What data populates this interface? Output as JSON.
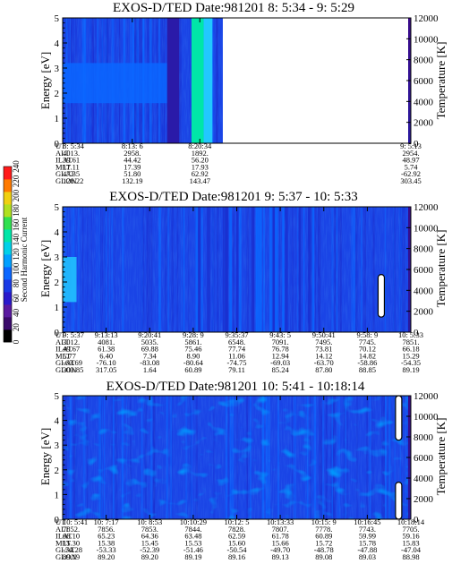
{
  "colors": {
    "background_field": "#1a44e6",
    "enhanced_field": "#0a66ff",
    "low_flux": "#1a2fd0",
    "dark_band": "#2a1aa8",
    "hot_band": "#00e6a8",
    "cyan": "#22c8ff",
    "temperature_bar_top": "#3a0a8a",
    "temperature_bar_bottom": "#2a1aa0"
  },
  "colorbar": {
    "label": "Second Harmonic Current",
    "ticks": [
      "0",
      "20",
      "40",
      "60",
      "80",
      "100",
      "120",
      "140",
      "160",
      "180",
      "200",
      "220",
      "240"
    ],
    "colors": [
      "#000000",
      "#3a0a6a",
      "#5a1aa0",
      "#2a1acc",
      "#1a3ae6",
      "#0a66ff",
      "#00a0ff",
      "#00d0e8",
      "#00e6a8",
      "#30e050",
      "#b0e020",
      "#f0d010",
      "#ff7a00",
      "#ff1a1a"
    ]
  },
  "chart_data": [
    {
      "type": "heatmap",
      "title": "EXOS-D/TED   Date:981201  8: 5:34 - 9: 5:29",
      "ylabel": "Energy [eV]",
      "ylim": [
        0,
        5
      ],
      "yticks": [
        "0",
        "1",
        "2",
        "3",
        "4",
        "5"
      ],
      "y2label": "Temperature [K]",
      "y2lim": [
        0,
        12000
      ],
      "y2ticks": [
        "0",
        "2000",
        "4000",
        "6000",
        "8000",
        "10000",
        "12000"
      ],
      "x_tick_fracs": [
        0,
        0.2,
        0.394,
        1.0
      ],
      "ephemeris_labels": [
        "UT",
        "ALT",
        "ILAT",
        "MLT",
        "GLAT",
        "GLON"
      ],
      "ephemeris_columns": [
        [
          "8: 5:34",
          "4013.",
          "39.61",
          "17.11",
          "47.35",
          "128.22"
        ],
        [
          "8:13: 6",
          "2958.",
          "44.42",
          "17.39",
          "51.80",
          "132.19"
        ],
        [
          "8:20:34",
          "1892.",
          "56.20",
          "17.93",
          "62.92",
          "143.47"
        ],
        [
          "9: 5:13",
          "2954.",
          "48.97",
          "5.74",
          "-62.92",
          "303.45"
        ]
      ],
      "data_end_frac": 0.46,
      "features": [
        {
          "kind": "enhanced_band",
          "x_from": 0.0,
          "x_to": 0.32,
          "energy_from": 1.6,
          "energy_to": 3.2,
          "color_key": "enhanced_field"
        },
        {
          "kind": "dark_band",
          "x_from": 0.3,
          "x_to": 0.335,
          "energy_from": 0,
          "energy_to": 5,
          "color_key": "dark_band"
        },
        {
          "kind": "hot_band",
          "x_from": 0.37,
          "x_to": 0.405,
          "energy_from": 0,
          "energy_to": 5,
          "color_key": "hot_band"
        },
        {
          "kind": "cyan_band",
          "x_from": 0.405,
          "x_to": 0.43,
          "energy_from": 0,
          "energy_to": 5,
          "color_key": "cyan"
        }
      ]
    },
    {
      "type": "heatmap",
      "title": "EXOS-D/TED   Date:981201  9: 5:37 - 10: 5:33",
      "ylabel": "Energy [eV]",
      "ylim": [
        0,
        5
      ],
      "yticks": [
        "0",
        "1",
        "2",
        "3",
        "4",
        "5"
      ],
      "y2label": "Temperature [K]",
      "y2lim": [
        0,
        12000
      ],
      "y2ticks": [
        "0",
        "2000",
        "4000",
        "6000",
        "8000",
        "10000",
        "12000"
      ],
      "x_tick_fracs": [
        0,
        0.125,
        0.25,
        0.375,
        0.5,
        0.625,
        0.75,
        0.875,
        1.0
      ],
      "ephemeris_labels": [
        "UT",
        "ALT",
        "ILAT",
        "MLT",
        "GLAT",
        "GLON"
      ],
      "ephemeris_columns": [
        [
          "9: 5:37",
          "3012.",
          "49.67",
          "5.77",
          "-63.69",
          "303.85"
        ],
        [
          "9:13:13",
          "4081.",
          "61.38",
          "6.40",
          "-76.10",
          "317.05"
        ],
        [
          "9:20:41",
          "5035.",
          "69.88",
          "7.34",
          "-83.08",
          "1.64"
        ],
        [
          "9:28: 9",
          "5861.",
          "75.46",
          "8.90",
          "-80.64",
          "60.89"
        ],
        [
          "9:35:37",
          "6548.",
          "77.74",
          "11.06",
          "-74.75",
          "79.11"
        ],
        [
          "9:43: 5",
          "7091.",
          "76.78",
          "12.94",
          "-69.03",
          "85.24"
        ],
        [
          "9:50:41",
          "7495.",
          "73.81",
          "14.12",
          "-63.70",
          "87.80"
        ],
        [
          "9:58: 9",
          "7745.",
          "70.12",
          "14.82",
          "-58.86",
          "88.85"
        ],
        [
          "10: 5:33",
          "7851.",
          "66.18",
          "15.29",
          "-54.35",
          "89.19"
        ]
      ],
      "data_end_frac": 1.0,
      "features": [
        {
          "kind": "enhanced_patch",
          "x_from": 0.0,
          "x_to": 0.04,
          "energy_from": 1.2,
          "energy_to": 3.0,
          "color_key": "cyan"
        },
        {
          "kind": "streak",
          "x_from": 0.38,
          "x_to": 0.72,
          "energy_from": 0,
          "energy_to": 5,
          "color_key": "low_flux"
        },
        {
          "kind": "temperature_spike",
          "x_at": 0.915,
          "energy_from": 0.6,
          "energy_to": 2.3,
          "color_key": "cyan"
        }
      ]
    },
    {
      "type": "heatmap",
      "title": "EXOS-D/TED   Date:981201  10: 5:41 - 10:18:14",
      "ylabel": "Energy [eV]",
      "ylim": [
        0,
        5
      ],
      "yticks": [
        "0",
        "1",
        "2",
        "3",
        "4",
        "5"
      ],
      "y2label": "Temperature [K]",
      "y2lim": [
        0,
        12000
      ],
      "y2ticks": [
        "0",
        "2000",
        "4000",
        "6000",
        "8000",
        "10000",
        "12000"
      ],
      "x_tick_fracs": [
        0,
        0.125,
        0.25,
        0.375,
        0.5,
        0.625,
        0.75,
        0.875,
        1.0
      ],
      "ephemeris_labels": [
        "UT",
        "ALT",
        "ILAT",
        "MLT",
        "GLAT",
        "GLON"
      ],
      "ephemeris_columns": [
        [
          "10: 5:41",
          "7852.",
          "66.10",
          "15.30",
          "-54.28",
          "89.19"
        ],
        [
          "10: 7:17",
          "7856.",
          "65.23",
          "15.38",
          "-53.33",
          "89.20"
        ],
        [
          "10: 8:53",
          "7853.",
          "64.36",
          "15.45",
          "-52.39",
          "89.20"
        ],
        [
          "10:10:29",
          "7844.",
          "63.48",
          "15.53",
          "-51.46",
          "89.19"
        ],
        [
          "10:12: 5",
          "7828.",
          "62.59",
          "15.60",
          "-50.54",
          "89.16"
        ],
        [
          "10:13:33",
          "7807.",
          "61.78",
          "15.66",
          "-49.70",
          "89.13"
        ],
        [
          "10:15: 9",
          "7778.",
          "60.89",
          "15.72",
          "-48.78",
          "89.08"
        ],
        [
          "10:16:45",
          "7743.",
          "59.99",
          "15.78",
          "-47.88",
          "89.03"
        ],
        [
          "10:18:14",
          "7705.",
          "59.16",
          "15.83",
          "-47.04",
          "88.98"
        ]
      ],
      "data_end_frac": 1.0,
      "features": [
        {
          "kind": "patchy_field",
          "x_from": 0.0,
          "x_to": 1.0,
          "energy_from": 0,
          "energy_to": 5,
          "color_key": "enhanced_field"
        },
        {
          "kind": "temperature_spike",
          "x_at": 0.965,
          "energy_from": 3.2,
          "energy_to": 5.0,
          "color_key": "cyan"
        },
        {
          "kind": "temperature_spike",
          "x_at": 0.965,
          "energy_from": 0,
          "energy_to": 1.5,
          "color_key": "cyan"
        }
      ]
    }
  ]
}
